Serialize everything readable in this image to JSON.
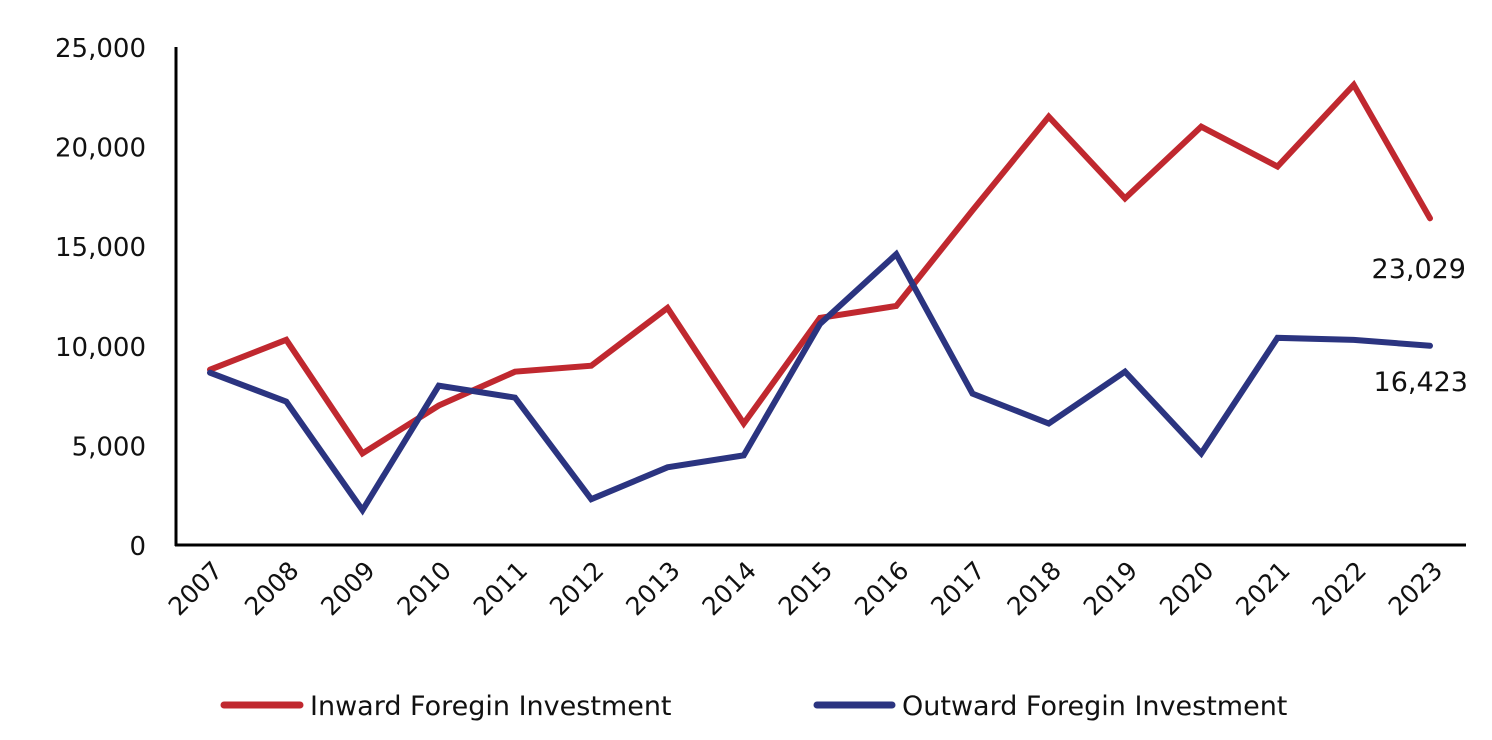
{
  "chart_data": {
    "type": "line",
    "title": "",
    "xlabel": "",
    "ylabel": "",
    "x": [
      "2007",
      "2008",
      "2009",
      "2010",
      "2011",
      "2012",
      "2013",
      "2014",
      "2015",
      "2016",
      "2017",
      "2018",
      "2019",
      "2020",
      "2021",
      "2022",
      "2023"
    ],
    "ylim": [
      0,
      25000
    ],
    "yticks": [
      "0",
      "5,000",
      "10,000",
      "15,000",
      "20,000",
      "25,000"
    ],
    "ytick_values": [
      0,
      5000,
      10000,
      15000,
      20000,
      25000
    ],
    "grid": false,
    "legend_position": "bottom",
    "series": [
      {
        "name": "Inward Foregin Investment",
        "color": "#C0282F",
        "values": [
          8800,
          10300,
          4600,
          7000,
          8700,
          9000,
          11900,
          6100,
          11400,
          12000,
          16800,
          21500,
          17400,
          21000,
          19000,
          23100,
          16400
        ]
      },
      {
        "name": "Outward Foregin Investment",
        "color": "#2B3480",
        "values": [
          8650,
          7200,
          1750,
          8000,
          7400,
          2300,
          3900,
          4500,
          11100,
          14600,
          7600,
          6100,
          8700,
          4600,
          10400,
          10300,
          10000
        ]
      }
    ],
    "annotations": [
      "23,029",
      "16,423"
    ]
  }
}
